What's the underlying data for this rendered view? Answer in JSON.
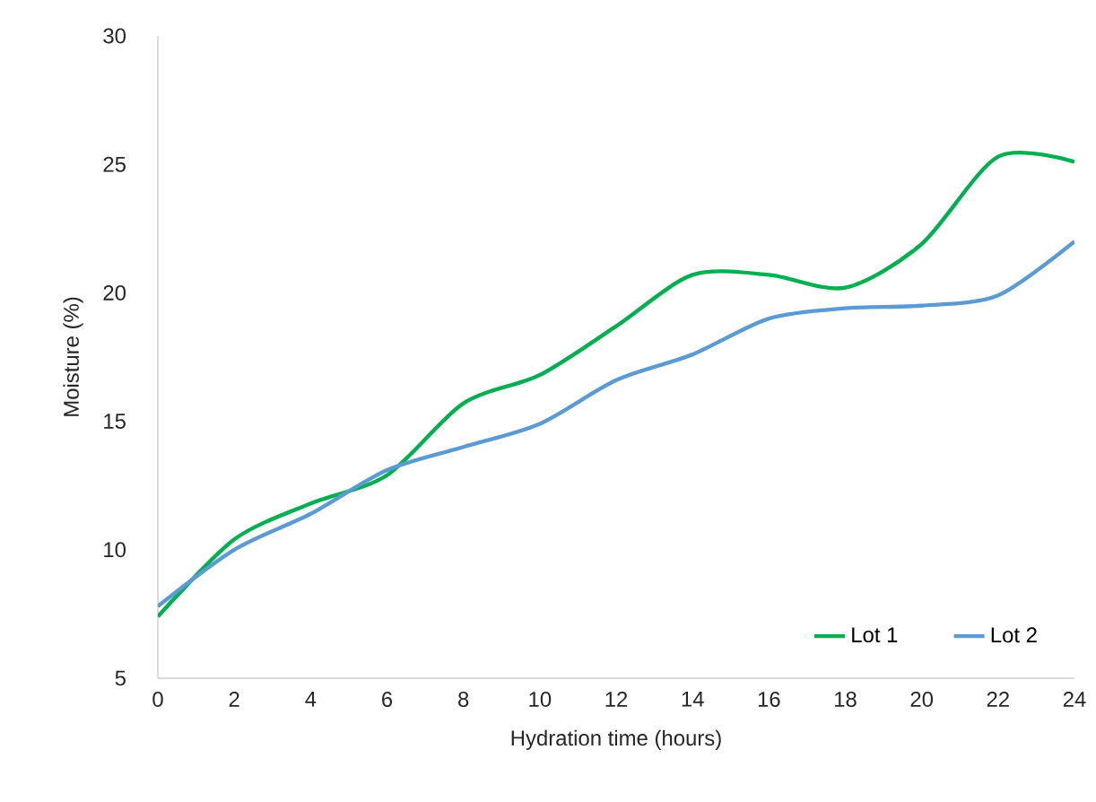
{
  "chart_data": {
    "type": "line",
    "xlabel": "Hydration time (hours)",
    "ylabel": "Moisture (%)",
    "x": [
      0,
      2,
      4,
      6,
      8,
      10,
      12,
      14,
      16,
      18,
      20,
      22,
      24
    ],
    "series": [
      {
        "name": "Lot 1",
        "color": "#00b050",
        "values": [
          7.4,
          10.4,
          11.8,
          12.9,
          15.7,
          16.8,
          18.7,
          20.7,
          20.7,
          20.2,
          21.9,
          25.3,
          25.1
        ]
      },
      {
        "name": "Lot 2",
        "color": "#5b9bd5",
        "values": [
          7.8,
          10.0,
          11.4,
          13.1,
          14.0,
          14.9,
          16.6,
          17.6,
          19.0,
          19.4,
          19.5,
          19.9,
          22.0
        ]
      }
    ],
    "xlim": [
      0,
      24
    ],
    "xticks": [
      0,
      2,
      4,
      6,
      8,
      10,
      12,
      14,
      16,
      18,
      20,
      22,
      24
    ],
    "ylim": [
      5,
      30
    ],
    "yticks": [
      5,
      10,
      15,
      20,
      25,
      30
    ],
    "grid": false,
    "legend": "bottom right",
    "marker": "none",
    "line_style": "solid"
  }
}
